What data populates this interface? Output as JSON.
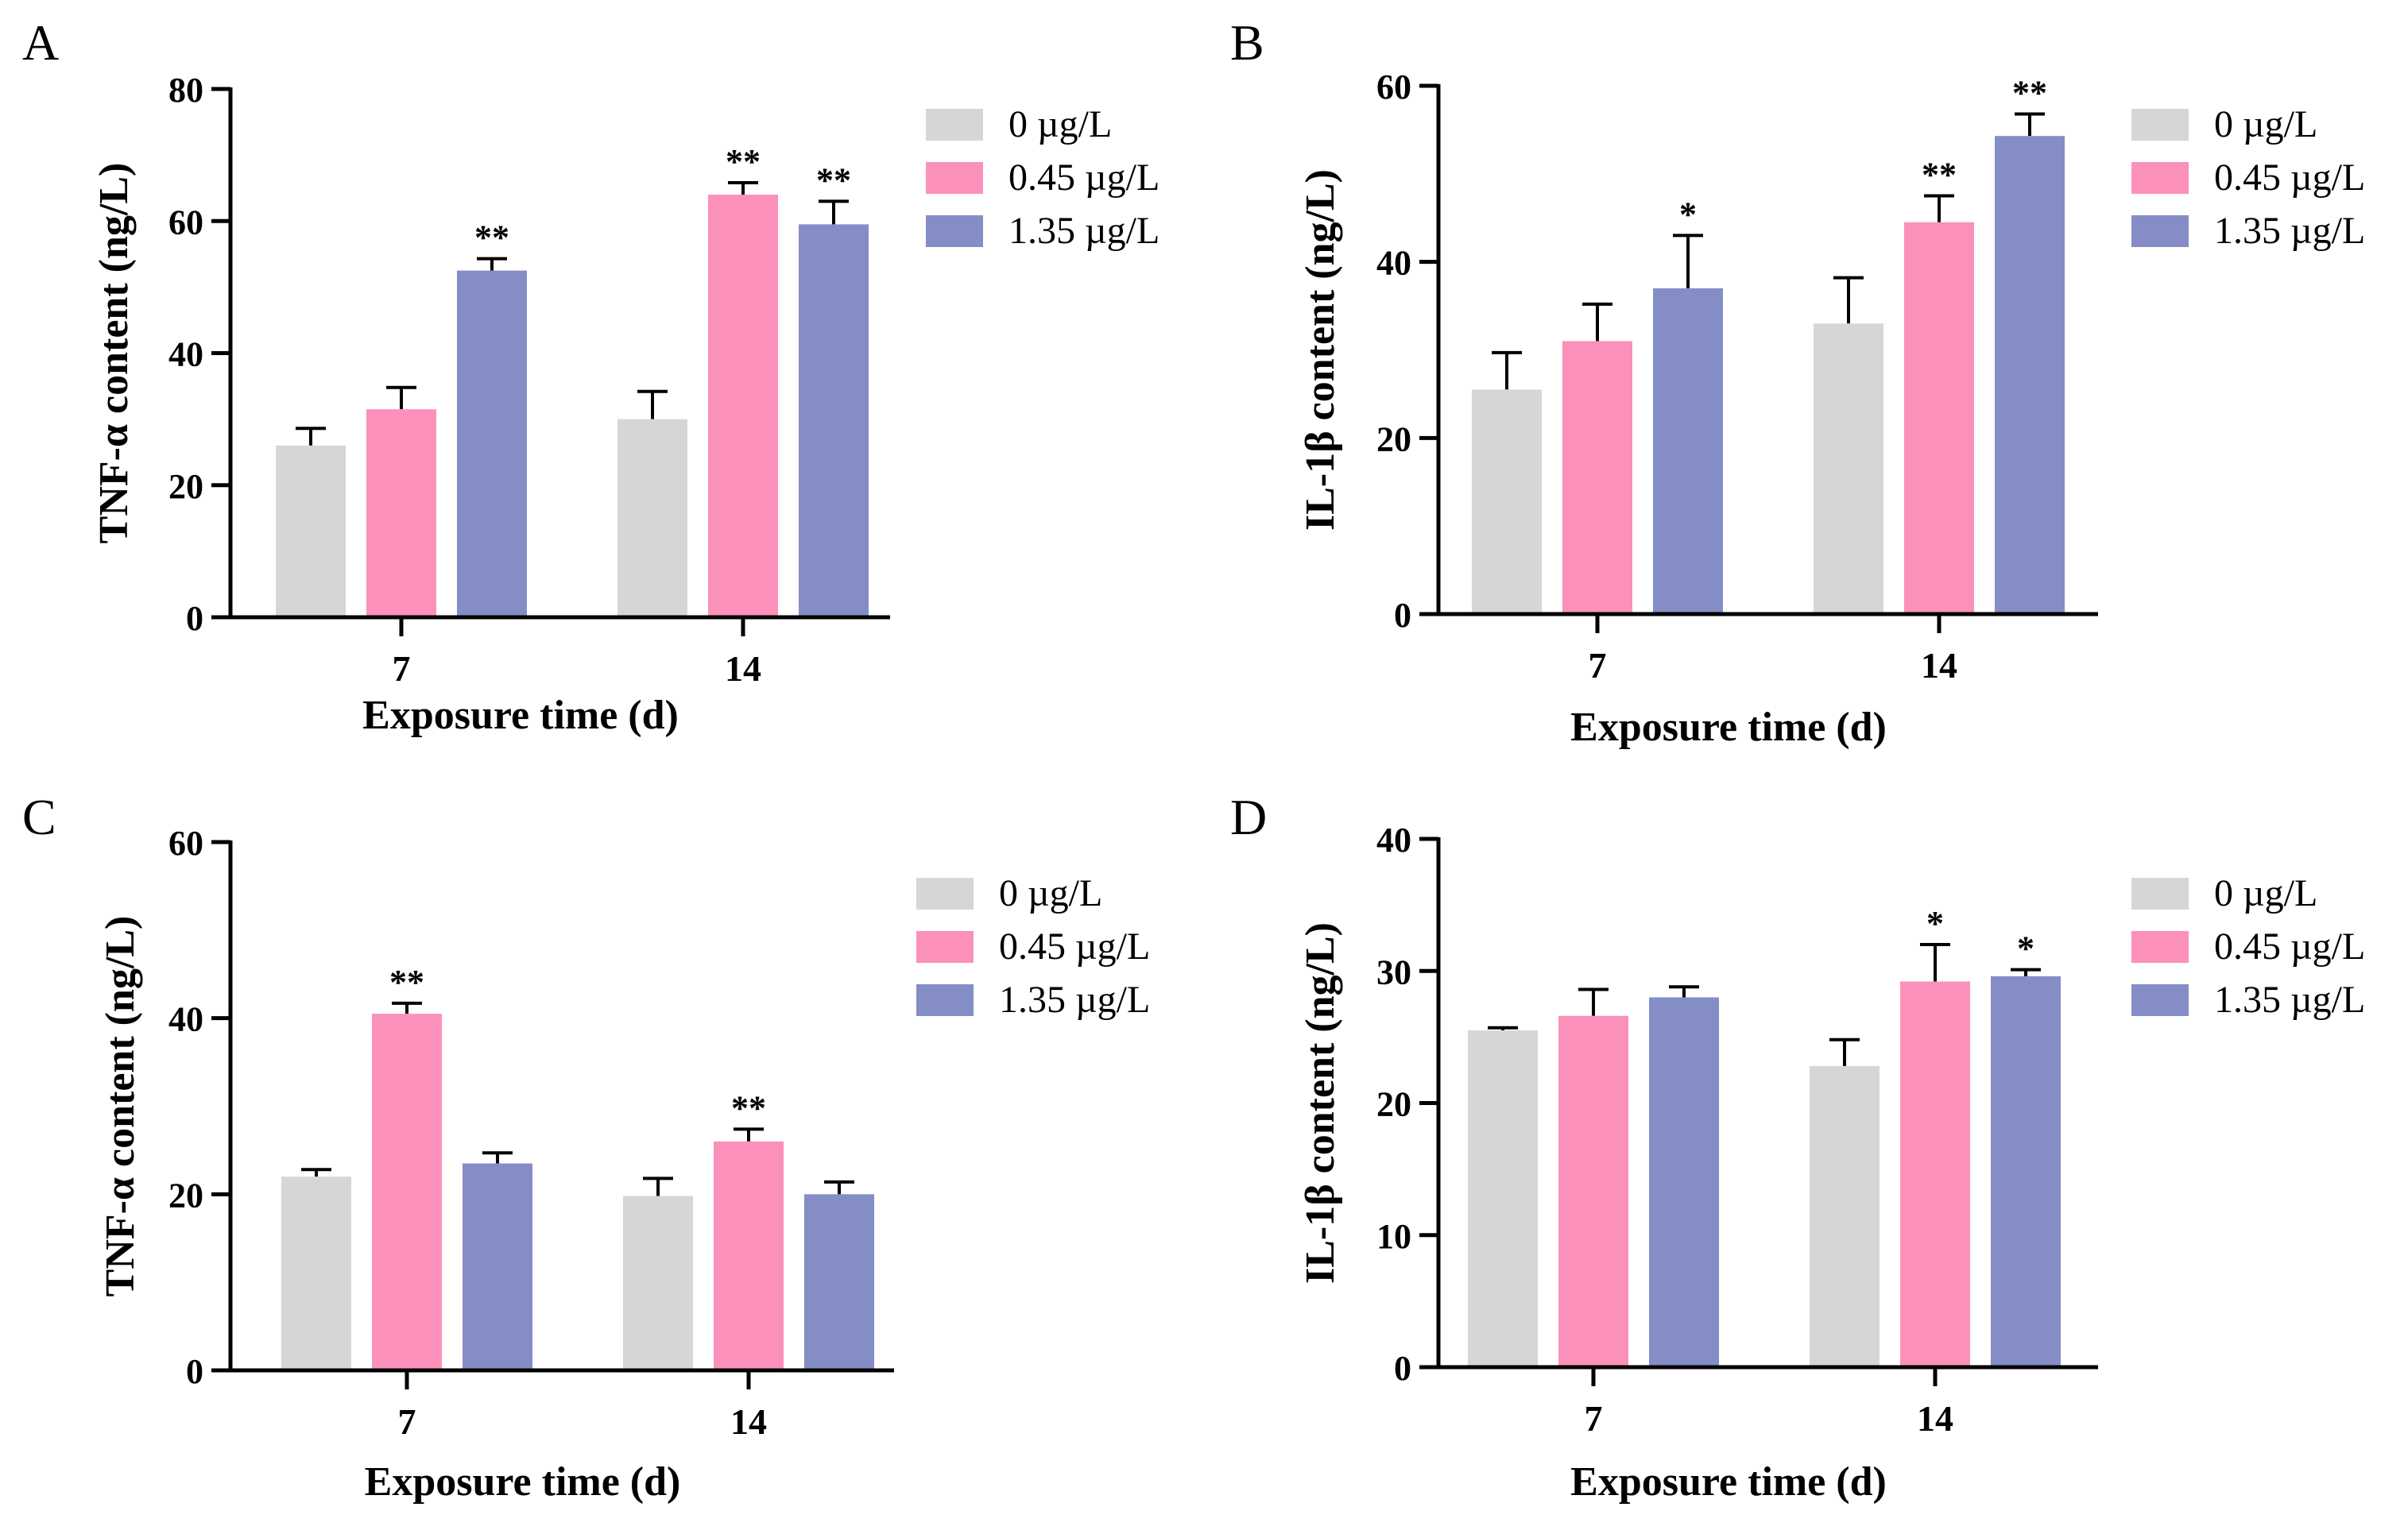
{
  "colors": {
    "0 µg/L": "#d5d6d6",
    "0.45 µg/L": "#fb91ba",
    "1.35 µg/L": "#848dc5",
    "axis": "#000000"
  },
  "chart_data": [
    {
      "panel": "A",
      "type": "bar",
      "xlabel": "Exposure time (d)",
      "ylabel": "TNF-α content (ng/L)",
      "ylim": [
        0,
        80
      ],
      "yticks": [
        0,
        20,
        40,
        60,
        80
      ],
      "categories": [
        "7",
        "14"
      ],
      "series": [
        {
          "name": "0 µg/L",
          "values": [
            26,
            30
          ],
          "errors": [
            2.6,
            4.2
          ],
          "sig": [
            "",
            ""
          ]
        },
        {
          "name": "0.45 µg/L",
          "values": [
            31.5,
            64
          ],
          "errors": [
            3.3,
            1.8
          ],
          "sig": [
            "",
            "**"
          ]
        },
        {
          "name": "1.35 µg/L",
          "values": [
            52.5,
            59.5
          ],
          "errors": [
            1.8,
            3.5
          ],
          "sig": [
            "**",
            "**"
          ]
        }
      ]
    },
    {
      "panel": "B",
      "type": "bar",
      "xlabel": "Exposure time (d)",
      "ylabel": "IL-1β content (ng/L)",
      "ylim": [
        0,
        60
      ],
      "yticks": [
        0,
        20,
        40,
        60
      ],
      "categories": [
        "7",
        "14"
      ],
      "series": [
        {
          "name": "0 µg/L",
          "values": [
            25.5,
            33
          ],
          "errors": [
            4.2,
            5.2
          ],
          "sig": [
            "",
            ""
          ]
        },
        {
          "name": "0.45 µg/L",
          "values": [
            31,
            44.5
          ],
          "errors": [
            4.2,
            3.0
          ],
          "sig": [
            "",
            "**"
          ]
        },
        {
          "name": "1.35 µg/L",
          "values": [
            37,
            54.3
          ],
          "errors": [
            6.0,
            2.5
          ],
          "sig": [
            "*",
            "**"
          ]
        }
      ]
    },
    {
      "panel": "C",
      "type": "bar",
      "xlabel": "Exposure time (d)",
      "ylabel": "TNF-α content (ng/L)",
      "ylim": [
        0,
        60
      ],
      "yticks": [
        0,
        20,
        40,
        60
      ],
      "categories": [
        "7",
        "14"
      ],
      "series": [
        {
          "name": "0 µg/L",
          "values": [
            22,
            19.8
          ],
          "errors": [
            0.8,
            2.0
          ],
          "sig": [
            "",
            ""
          ]
        },
        {
          "name": "0.45 µg/L",
          "values": [
            40.5,
            26
          ],
          "errors": [
            1.2,
            1.4
          ],
          "sig": [
            "**",
            "**"
          ]
        },
        {
          "name": "1.35 µg/L",
          "values": [
            23.5,
            20
          ],
          "errors": [
            1.2,
            1.4
          ],
          "sig": [
            "",
            ""
          ]
        }
      ]
    },
    {
      "panel": "D",
      "type": "bar",
      "xlabel": "Exposure time (d)",
      "ylabel": "IL-1β content (ng/L)",
      "ylim": [
        0,
        40
      ],
      "yticks": [
        0,
        10,
        20,
        30,
        40
      ],
      "categories": [
        "7",
        "14"
      ],
      "series": [
        {
          "name": "0 µg/L",
          "values": [
            25.5,
            22.8
          ],
          "errors": [
            0.2,
            2.0
          ],
          "sig": [
            "",
            ""
          ]
        },
        {
          "name": "0.45 µg/L",
          "values": [
            26.6,
            29.2
          ],
          "errors": [
            2.0,
            2.8
          ],
          "sig": [
            "",
            "*"
          ]
        },
        {
          "name": "1.35 µg/L",
          "values": [
            28,
            29.6
          ],
          "errors": [
            0.8,
            0.5
          ],
          "sig": [
            "",
            "*"
          ]
        }
      ]
    }
  ]
}
